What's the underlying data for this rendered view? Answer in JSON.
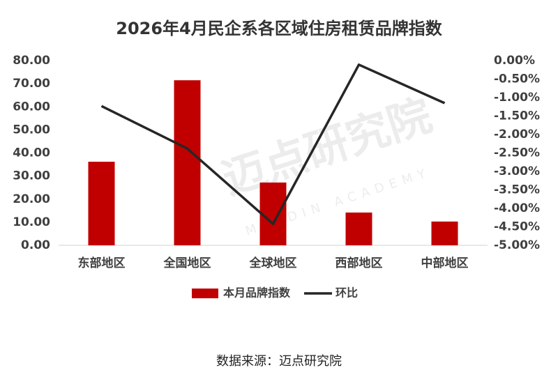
{
  "chart_data": {
    "type": "bar",
    "title": "2026年4月民企系各区域住房租赁品牌指数",
    "categories": [
      "东部地区",
      "全国地区",
      "全球地区",
      "西部地区",
      "中部地区"
    ],
    "series": [
      {
        "name": "本月品牌指数",
        "type": "bar",
        "color": "#c00000",
        "values": [
          36.2,
          71.5,
          27.2,
          14.2,
          10.3
        ]
      },
      {
        "name": "环比",
        "type": "line",
        "axis": "y2",
        "color": "#262626",
        "values": [
          -1.23,
          -2.38,
          -4.42,
          -0.11,
          -1.15
        ]
      }
    ],
    "ylim": [
      0,
      80
    ],
    "yticks": [
      {
        "value": 0,
        "label": "0.00"
      },
      {
        "value": 10,
        "label": "10.00"
      },
      {
        "value": 20,
        "label": "20.00"
      },
      {
        "value": 30,
        "label": "30.00"
      },
      {
        "value": 40,
        "label": "40.00"
      },
      {
        "value": 50,
        "label": "50.00"
      },
      {
        "value": 60,
        "label": "60.00"
      },
      {
        "value": 70,
        "label": "70.00"
      },
      {
        "value": 80,
        "label": "80.00"
      }
    ],
    "y2lim": [
      -5,
      0
    ],
    "y2ticks": [
      {
        "value": 0,
        "label": "0.00%"
      },
      {
        "value": -0.5,
        "label": "-0.50%"
      },
      {
        "value": -1,
        "label": "-1.00%"
      },
      {
        "value": -1.5,
        "label": "-1.50%"
      },
      {
        "value": -2,
        "label": "-2.00%"
      },
      {
        "value": -2.5,
        "label": "-2.50%"
      },
      {
        "value": -3,
        "label": "-3.00%"
      },
      {
        "value": -3.5,
        "label": "-3.50%"
      },
      {
        "value": -4,
        "label": "-4.00%"
      },
      {
        "value": -4.5,
        "label": "-4.50%"
      },
      {
        "value": -5,
        "label": "-5.00%"
      }
    ],
    "grid": false,
    "legend": "bottom",
    "source": "数据来源：迈点研究院",
    "watermark": "迈点研究院",
    "watermark_sub": "MEADIN ACADEMY"
  }
}
